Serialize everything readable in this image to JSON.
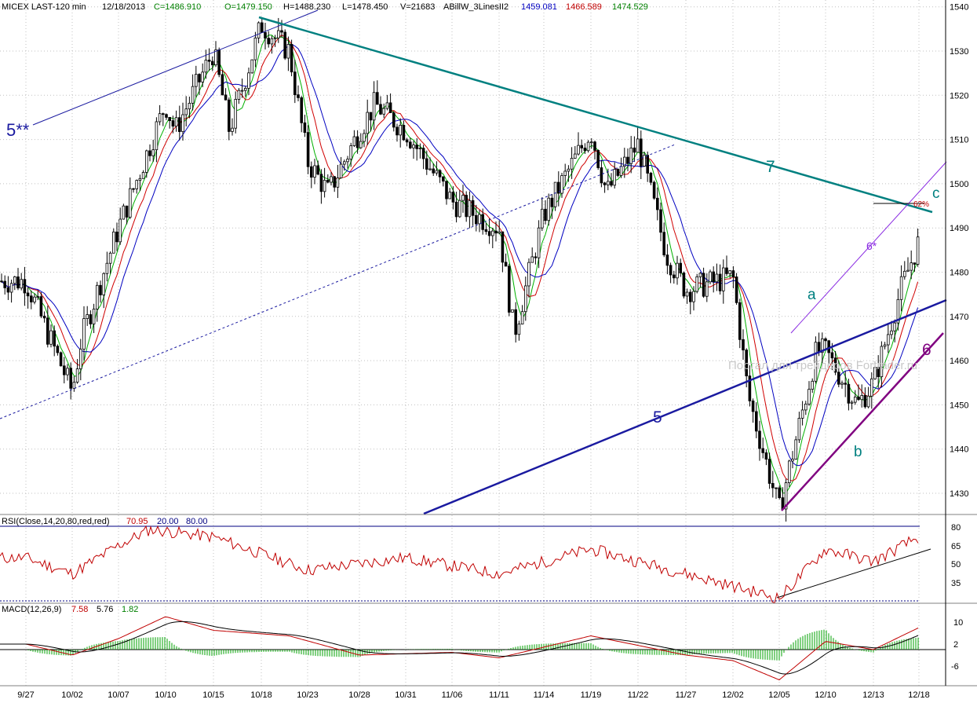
{
  "header": {
    "symbol": "MICEX LAST-120 min",
    "date": "12/18/2013",
    "close": "C=1486.910",
    "open": "O=1479.150",
    "high": "H=1488.230",
    "low": "L=1478.450",
    "volume": "V=21683",
    "indicator": "ABillW_3LinesII2",
    "ind_v1": "1459.081",
    "ind_v2": "1466.589",
    "ind_v3": "1474.529"
  },
  "rsi_header": {
    "label": "RSI(Close,14,20,80,red,red)",
    "value": "70.95",
    "low": "20.00",
    "high": "80.00"
  },
  "macd_header": {
    "label": "MACD(12,26,9)",
    "v1": "7.58",
    "v2": "5.76",
    "v3": "1.82"
  },
  "annotations": {
    "wave_5stars": "5**",
    "wave_7": "7",
    "wave_5": "5",
    "wave_6": "6",
    "wave_6star": "6*",
    "wave_a": "a",
    "wave_b": "b",
    "wave_c": "c",
    "fib_62": "62%",
    "watermark": "Портал для трейдеров  Fortrader.ru"
  },
  "colors": {
    "candle": "#000000",
    "ma_fast": "#00b000",
    "ma_mid": "#d00000",
    "ma_slow": "#0000c0",
    "trend_7": "#008080",
    "trend_5": "#1a1aa0",
    "trend_6": "#800080",
    "rsi": "#c00000",
    "macd_line": "#c00000",
    "macd_signal": "#000000",
    "macd_hist": "#00a000",
    "grid": "#b0b0b0"
  },
  "chart_data": [
    {
      "type": "candlestick",
      "title": "MICEX LAST-120 min",
      "x_tick_labels": [
        "9/27",
        "10/02",
        "10/07",
        "10/10",
        "10/15",
        "10/18",
        "10/23",
        "10/28",
        "10/31",
        "11/06",
        "11/11",
        "11/14",
        "11/19",
        "11/22",
        "11/27",
        "12/02",
        "12/05",
        "12/10",
        "12/13",
        "12/18"
      ],
      "y_ticks": [
        1430,
        1440,
        1450,
        1460,
        1470,
        1480,
        1490,
        1500,
        1510,
        1520,
        1530,
        1540
      ],
      "ylim": [
        1423,
        1542
      ],
      "grid": true,
      "close_path_anchors": [
        {
          "x": "9/27",
          "y": 1478
        },
        {
          "x": "10/02",
          "y": 1453
        },
        {
          "x": "10/03",
          "y": 1465
        },
        {
          "x": "10/07",
          "y": 1490
        },
        {
          "x": "10/10",
          "y": 1518
        },
        {
          "x": "10/11",
          "y": 1512
        },
        {
          "x": "10/15",
          "y": 1530
        },
        {
          "x": "10/16",
          "y": 1512
        },
        {
          "x": "10/18",
          "y": 1536
        },
        {
          "x": "10/21",
          "y": 1530
        },
        {
          "x": "10/23",
          "y": 1505
        },
        {
          "x": "10/25",
          "y": 1498
        },
        {
          "x": "10/28",
          "y": 1512
        },
        {
          "x": "10/29",
          "y": 1518
        },
        {
          "x": "10/31",
          "y": 1512
        },
        {
          "x": "11/06",
          "y": 1496
        },
        {
          "x": "11/11",
          "y": 1490
        },
        {
          "x": "11/12",
          "y": 1466
        },
        {
          "x": "11/14",
          "y": 1493
        },
        {
          "x": "11/19",
          "y": 1512
        },
        {
          "x": "11/20",
          "y": 1498
        },
        {
          "x": "11/22",
          "y": 1509
        },
        {
          "x": "11/25",
          "y": 1484
        },
        {
          "x": "11/27",
          "y": 1476
        },
        {
          "x": "12/02",
          "y": 1479
        },
        {
          "x": "12/03",
          "y": 1452
        },
        {
          "x": "12/05",
          "y": 1426
        },
        {
          "x": "12/09",
          "y": 1462
        },
        {
          "x": "12/10",
          "y": 1462
        },
        {
          "x": "12/12",
          "y": 1450
        },
        {
          "x": "12/13",
          "y": 1455
        },
        {
          "x": "12/16",
          "y": 1476
        },
        {
          "x": "12/18",
          "y": 1487
        }
      ],
      "trendlines": [
        {
          "name": "7",
          "from": {
            "x": "10/18",
            "y": 1538
          },
          "to": {
            "x": "12/18",
            "y": 1494
          }
        },
        {
          "name": "5",
          "from": {
            "x": "11/04",
            "y": 1425
          },
          "to": {
            "x": "12/18",
            "y": 1474
          }
        },
        {
          "name": "6",
          "from": {
            "x": "12/05",
            "y": 1426
          },
          "to": {
            "x": "12/18",
            "y": 1466
          }
        }
      ],
      "fib_level": {
        "label": "62%",
        "y": 1496
      }
    },
    {
      "type": "line",
      "title": "RSI(Close,14,20,80,red,red)",
      "y_ticks": [
        35,
        50,
        65,
        80
      ],
      "levels": [
        20,
        80
      ],
      "last": 70.95,
      "path_anchors": [
        {
          "x": "9/27",
          "y": 55
        },
        {
          "x": "10/02",
          "y": 42
        },
        {
          "x": "10/07",
          "y": 65
        },
        {
          "x": "10/09",
          "y": 78
        },
        {
          "x": "10/15",
          "y": 72
        },
        {
          "x": "10/23",
          "y": 45
        },
        {
          "x": "10/31",
          "y": 55
        },
        {
          "x": "11/11",
          "y": 42
        },
        {
          "x": "11/19",
          "y": 62
        },
        {
          "x": "11/27",
          "y": 42
        },
        {
          "x": "12/05",
          "y": 22
        },
        {
          "x": "12/10",
          "y": 62
        },
        {
          "x": "12/13",
          "y": 52
        },
        {
          "x": "12/18",
          "y": 72
        }
      ]
    },
    {
      "type": "line",
      "title": "MACD(12,26,9)",
      "y_ticks": [
        -6,
        2,
        10
      ],
      "series": [
        {
          "name": "MACD",
          "last": 7.58
        },
        {
          "name": "Signal",
          "last": 5.76
        },
        {
          "name": "Histogram",
          "last": 1.82
        }
      ],
      "macd_anchors": [
        {
          "x": "9/27",
          "y": 2
        },
        {
          "x": "10/02",
          "y": -2
        },
        {
          "x": "10/07",
          "y": 4
        },
        {
          "x": "10/10",
          "y": 12
        },
        {
          "x": "10/15",
          "y": 7
        },
        {
          "x": "10/21",
          "y": 5
        },
        {
          "x": "10/28",
          "y": -2
        },
        {
          "x": "11/06",
          "y": -1
        },
        {
          "x": "11/11",
          "y": -3
        },
        {
          "x": "11/19",
          "y": 5
        },
        {
          "x": "11/27",
          "y": -2
        },
        {
          "x": "12/02",
          "y": -4
        },
        {
          "x": "12/05",
          "y": -11
        },
        {
          "x": "12/10",
          "y": 3
        },
        {
          "x": "12/13",
          "y": 0
        },
        {
          "x": "12/18",
          "y": 8
        }
      ]
    }
  ]
}
